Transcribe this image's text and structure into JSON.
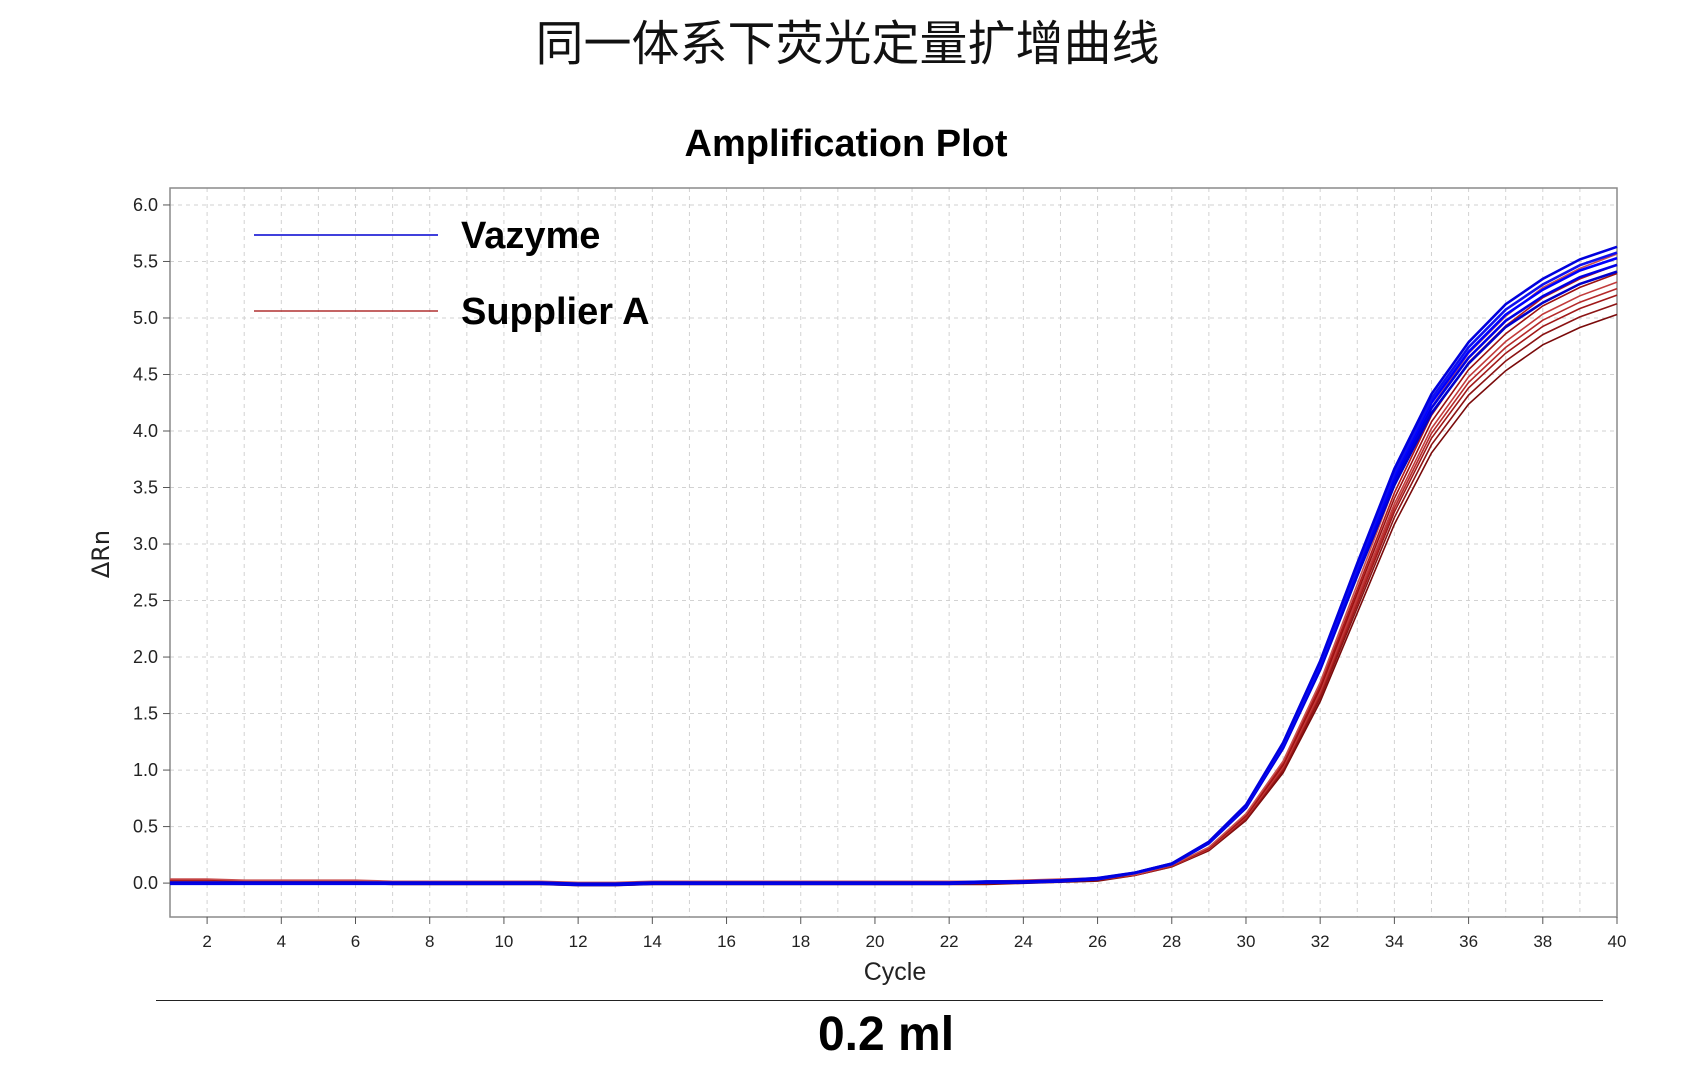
{
  "page": {
    "title": "同一体系下荧光定量扩增曲线",
    "volume_label": "0.2 ml"
  },
  "chart_data": {
    "type": "line",
    "title": "Amplification Plot",
    "xlabel": "Cycle",
    "ylabel": "ΔRn",
    "xlim": [
      1,
      40
    ],
    "ylim": [
      -0.3,
      6.15
    ],
    "xticks": [
      2,
      4,
      6,
      8,
      10,
      12,
      14,
      16,
      18,
      20,
      22,
      24,
      26,
      28,
      30,
      32,
      34,
      36,
      38,
      40
    ],
    "yticks": [
      0.0,
      0.5,
      1.0,
      1.5,
      2.0,
      2.5,
      3.0,
      3.5,
      4.0,
      4.5,
      5.0,
      5.5,
      6.0
    ],
    "grid": true,
    "legend": {
      "placement": "top-left",
      "entries": [
        {
          "label": "Vazyme",
          "color": "#0000d0"
        },
        {
          "label": "Supplier A",
          "color": "#b03030"
        }
      ]
    },
    "x": [
      1,
      2,
      3,
      4,
      5,
      6,
      7,
      8,
      9,
      10,
      11,
      12,
      13,
      14,
      15,
      16,
      17,
      18,
      19,
      20,
      21,
      22,
      23,
      24,
      25,
      26,
      27,
      28,
      29,
      30,
      31,
      32,
      33,
      34,
      35,
      36,
      37,
      38,
      39,
      40
    ],
    "series": [
      {
        "name": "Vazyme",
        "color": "#0000ee",
        "values": [
          0.0,
          0.0,
          0.0,
          0.0,
          0.0,
          0.0,
          0.0,
          0.0,
          0.0,
          0.0,
          0.0,
          -0.01,
          -0.01,
          0.0,
          0.0,
          0.0,
          0.0,
          0.0,
          0.0,
          0.0,
          0.0,
          0.0,
          0.01,
          0.01,
          0.02,
          0.04,
          0.09,
          0.17,
          0.36,
          0.68,
          1.22,
          1.93,
          2.78,
          3.6,
          4.25,
          4.7,
          5.03,
          5.25,
          5.42,
          5.53
        ]
      },
      {
        "name": "Supplier A",
        "color": "#a01818",
        "values": [
          0.02,
          0.02,
          0.01,
          0.01,
          0.01,
          0.01,
          0.0,
          0.0,
          0.0,
          0.0,
          0.0,
          -0.01,
          -0.01,
          0.0,
          0.0,
          0.0,
          0.0,
          0.0,
          0.0,
          0.0,
          0.0,
          0.0,
          0.0,
          0.01,
          0.02,
          0.03,
          0.07,
          0.15,
          0.3,
          0.58,
          1.02,
          1.68,
          2.5,
          3.32,
          3.98,
          4.43,
          4.74,
          4.98,
          5.14,
          5.26
        ]
      }
    ]
  }
}
